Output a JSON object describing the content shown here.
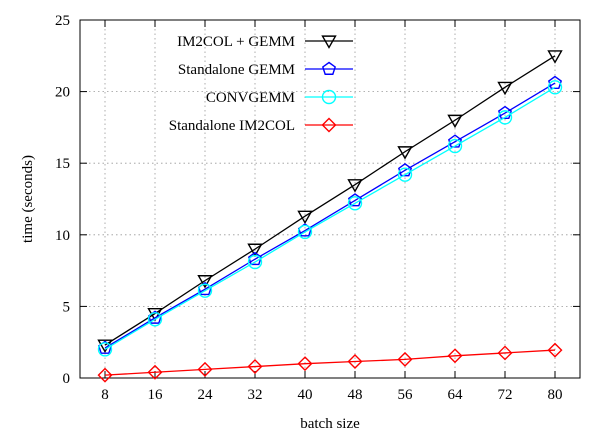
{
  "chart_data": {
    "type": "line",
    "xlabel": "batch size",
    "ylabel": "time (seconds)",
    "x": [
      8,
      16,
      24,
      32,
      40,
      48,
      56,
      64,
      72,
      80
    ],
    "xticks": [
      "8",
      "16",
      "24",
      "32",
      "40",
      "48",
      "56",
      "64",
      "72",
      "80"
    ],
    "yticks": [
      "0",
      "5",
      "10",
      "15",
      "20",
      "25"
    ],
    "ylim": [
      0,
      25
    ],
    "grid": true,
    "legend_position": "top-left",
    "series": [
      {
        "name": "IM2COL + GEMM",
        "color": "#000000",
        "marker": "triangle-down",
        "values": [
          2.3,
          4.5,
          6.8,
          9.0,
          11.3,
          13.5,
          15.8,
          18.0,
          20.3,
          22.5
        ]
      },
      {
        "name": "Standalone GEMM",
        "color": "#0000ff",
        "marker": "pentagon",
        "values": [
          2.1,
          4.2,
          6.2,
          8.3,
          10.3,
          12.4,
          14.5,
          16.5,
          18.5,
          20.6
        ]
      },
      {
        "name": "CONVGEMM",
        "color": "#00ffff",
        "marker": "circle",
        "values": [
          2.0,
          4.1,
          6.1,
          8.1,
          10.2,
          12.2,
          14.2,
          16.2,
          18.2,
          20.3
        ]
      },
      {
        "name": "Standalone IM2COL",
        "color": "#ff0000",
        "marker": "diamond",
        "values": [
          0.2,
          0.4,
          0.6,
          0.8,
          1.0,
          1.15,
          1.3,
          1.55,
          1.75,
          1.95
        ]
      }
    ]
  }
}
